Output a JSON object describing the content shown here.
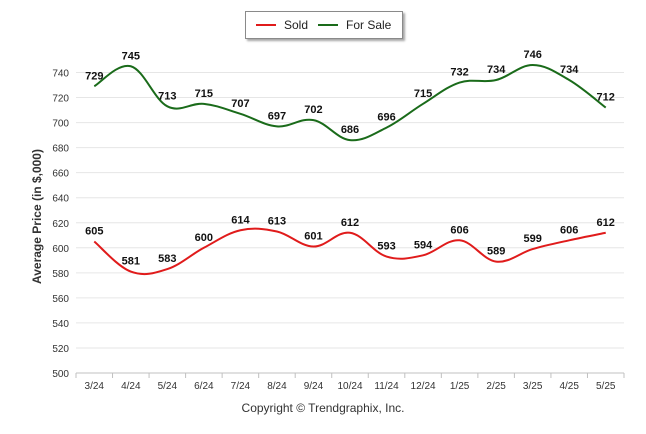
{
  "chart_data": {
    "type": "line",
    "title": "",
    "xlabel": "",
    "ylabel": "Average Price (in $,000)",
    "ylim": [
      500,
      750
    ],
    "yticks": [
      500,
      520,
      540,
      560,
      580,
      600,
      620,
      640,
      660,
      680,
      700,
      720,
      740
    ],
    "categories": [
      "3/24",
      "4/24",
      "5/24",
      "6/24",
      "7/24",
      "8/24",
      "9/24",
      "10/24",
      "11/24",
      "12/24",
      "1/25",
      "2/25",
      "3/25",
      "4/25",
      "5/25"
    ],
    "series": [
      {
        "name": "Sold",
        "color": "#e01b1b",
        "values": [
          605,
          581,
          583,
          600,
          614,
          613,
          601,
          612,
          593,
          594,
          606,
          589,
          599,
          606,
          612
        ]
      },
      {
        "name": "For Sale",
        "color": "#1a6b1a",
        "values": [
          729,
          745,
          713,
          715,
          707,
          697,
          702,
          686,
          696,
          715,
          732,
          734,
          746,
          734,
          712
        ]
      }
    ],
    "grid": true,
    "legend_position": "top-center",
    "data_labels": true
  },
  "footer": {
    "copyright": "Copyright © Trendgraphix, Inc."
  }
}
